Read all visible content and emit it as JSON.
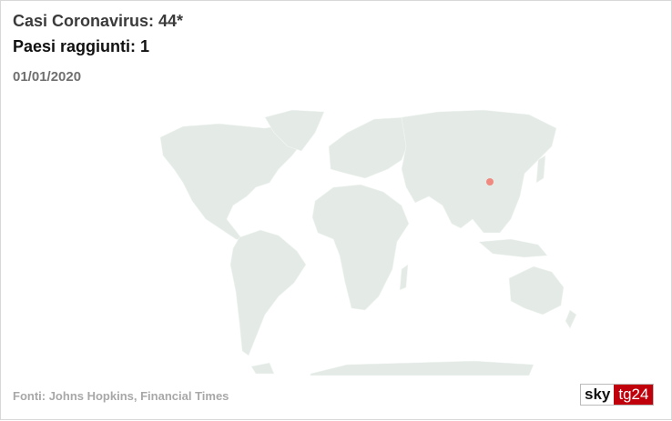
{
  "header": {
    "cases": "Casi Coronavirus: 44*",
    "countries": "Paesi raggiunti: 1",
    "date": "01/01/2020"
  },
  "footer": {
    "sources": "Fonti: Johns Hopkins, Financial Times"
  },
  "logo": {
    "part1": "sky",
    "part2": "tg24"
  },
  "map": {
    "land_color": "#e4ebe6",
    "marker_color": "#f08a80",
    "markers": [
      {
        "location": "Wuhan, China"
      }
    ]
  }
}
